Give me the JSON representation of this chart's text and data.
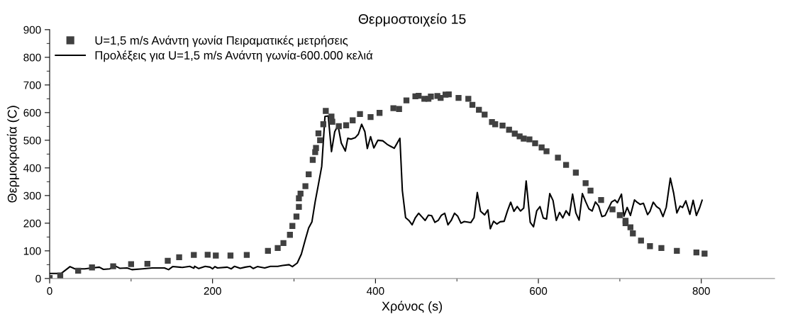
{
  "chart_data": {
    "type": "line",
    "title": "Θερμοστοιχείο 15",
    "xlabel": "Χρόνος (s)",
    "ylabel": "Θερμοκρασία (C)",
    "xlim": [
      0,
      890
    ],
    "ylim": [
      0,
      900
    ],
    "xticks": [
      0,
      {
        "value": 100,
        "label": null
      },
      200,
      {
        "value": 300,
        "label": null
      },
      400,
      {
        "value": 500,
        "label": null
      },
      600,
      {
        "value": 700,
        "label": null
      },
      800
    ],
    "yticks": [
      0,
      {
        "value": 50,
        "label": null
      },
      100,
      {
        "value": 150,
        "label": null
      },
      200,
      {
        "value": 250,
        "label": null
      },
      300,
      {
        "value": 350,
        "label": null
      },
      400,
      {
        "value": 450,
        "label": null
      },
      500,
      {
        "value": 550,
        "label": null
      },
      600,
      {
        "value": 650,
        "label": null
      },
      700,
      {
        "value": 750,
        "label": null
      },
      800,
      {
        "value": 850,
        "label": null
      },
      900
    ],
    "grid": false,
    "legend": "top left",
    "series": [
      {
        "name": "U=1,5 m/s Ανάντη γωνία Πειραματικές μετρήσεις",
        "type": "scatter",
        "marker": "square",
        "color": "#404040",
        "x": [
          0,
          13,
          35,
          52,
          78,
          100,
          120,
          145,
          159,
          177,
          194,
          204,
          222,
          242,
          268,
          280,
          287,
          295,
          298,
          303,
          306,
          306,
          308,
          314,
          318,
          323,
          326,
          327,
          332,
          330,
          336,
          339,
          346,
          347,
          355,
          364,
          372,
          381,
          394,
          405,
          422,
          429,
          438,
          449,
          453,
          460,
          465,
          468,
          476,
          480,
          486,
          490,
          502,
          514,
          519,
          527,
          534,
          543,
          547,
          556,
          564,
          571,
          577,
          582,
          589,
          596,
          604,
          610,
          624,
          634,
          646,
          658,
          664,
          677,
          691,
          700,
          707,
          707,
          713,
          716,
          726,
          737,
          751,
          770,
          794,
          804
        ],
        "values": [
          2,
          11,
          28,
          40,
          44,
          52,
          53,
          64,
          77,
          85,
          86,
          83,
          83,
          85,
          100,
          110,
          128,
          158,
          190,
          224,
          259,
          290,
          307,
          334,
          377,
          429,
          457,
          472,
          500,
          525,
          558,
          606,
          586,
          567,
          551,
          554,
          572,
          595,
          584,
          599,
          616,
          613,
          644,
          659,
          661,
          650,
          650,
          658,
          660,
          653,
          665,
          666,
          653,
          650,
          628,
          610,
          593,
          566,
          558,
          553,
          538,
          524,
          514,
          506,
          503,
          489,
          474,
          460,
          437,
          411,
          383,
          345,
          318,
          284,
          250,
          229,
          209,
          200,
          185,
          163,
          137,
          117,
          110,
          100,
          94,
          90
        ]
      },
      {
        "name": "Προλέξεις για U=1,5 m/s Ανάντη γωνία-600.000 κελιά",
        "marker": "none",
        "line_style": "solid",
        "color": "#000000",
        "x": [
          0,
          14,
          25,
          31,
          43,
          52,
          61,
          66,
          74,
          80,
          86,
          95,
          101,
          114,
          126,
          141,
          146,
          151,
          163,
          172,
          177,
          178,
          183,
          191,
          197,
          200,
          203,
          206,
          218,
          223,
          227,
          234,
          240,
          246,
          250,
          255,
          264,
          271,
          280,
          286,
          294,
          298,
          304,
          309,
          314,
          318,
          322,
          326,
          330,
          334,
          338,
          342,
          346,
          350,
          354,
          358,
          363,
          366,
          370,
          375,
          379,
          383,
          387,
          390,
          394,
          398,
          403,
          409,
          414,
          418,
          423,
          430,
          433,
          437,
          441,
          445,
          449,
          453,
          457,
          461,
          465,
          469,
          473,
          477,
          481,
          485,
          489,
          493,
          497,
          501,
          505,
          509,
          517,
          521,
          525,
          529,
          534,
          538,
          541,
          545,
          549,
          553,
          558,
          562,
          566,
          570,
          574,
          578,
          582,
          585,
          590,
          594,
          598,
          602,
          606,
          610,
          614,
          618,
          622,
          626,
          630,
          634,
          638,
          642,
          646,
          650,
          654,
          658,
          662,
          666,
          670,
          674,
          678,
          682,
          686,
          690,
          694,
          697,
          702,
          705,
          709,
          713,
          718,
          721,
          725,
          729,
          734,
          737,
          741,
          745,
          749,
          753,
          757,
          762,
          766,
          770,
          774,
          777,
          781,
          786,
          790,
          794,
          798,
          801
        ],
        "values": [
          18,
          18,
          43,
          35,
          35,
          38,
          41,
          33,
          35,
          46,
          37,
          38,
          32,
          35,
          38,
          38,
          32,
          43,
          40,
          44,
          37,
          44,
          36,
          44,
          41,
          35,
          43,
          38,
          41,
          35,
          44,
          37,
          41,
          44,
          36,
          43,
          38,
          44,
          44,
          47,
          50,
          43,
          56,
          88,
          142,
          183,
          205,
          278,
          341,
          405,
          586,
          588,
          459,
          531,
          554,
          490,
          461,
          507,
          504,
          509,
          522,
          558,
          531,
          470,
          513,
          472,
          500,
          498,
          486,
          479,
          471,
          507,
          318,
          220,
          210,
          194,
          220,
          236,
          223,
          210,
          229,
          227,
          203,
          210,
          229,
          236,
          194,
          210,
          236,
          225,
          200,
          206,
          202,
          220,
          311,
          243,
          230,
          248,
          180,
          207,
          197,
          205,
          207,
          244,
          276,
          243,
          260,
          244,
          255,
          353,
          203,
          187,
          245,
          260,
          219,
          215,
          307,
          282,
          210,
          239,
          219,
          245,
          228,
          305,
          237,
          211,
          307,
          278,
          252,
          244,
          277,
          262,
          224,
          228,
          253,
          277,
          284,
          274,
          305,
          225,
          257,
          228,
          284,
          276,
          268,
          272,
          231,
          243,
          276,
          260,
          252,
          224,
          258,
          363,
          310,
          237,
          262,
          257,
          281,
          232,
          283,
          228,
          256,
          283
        ]
      }
    ]
  }
}
